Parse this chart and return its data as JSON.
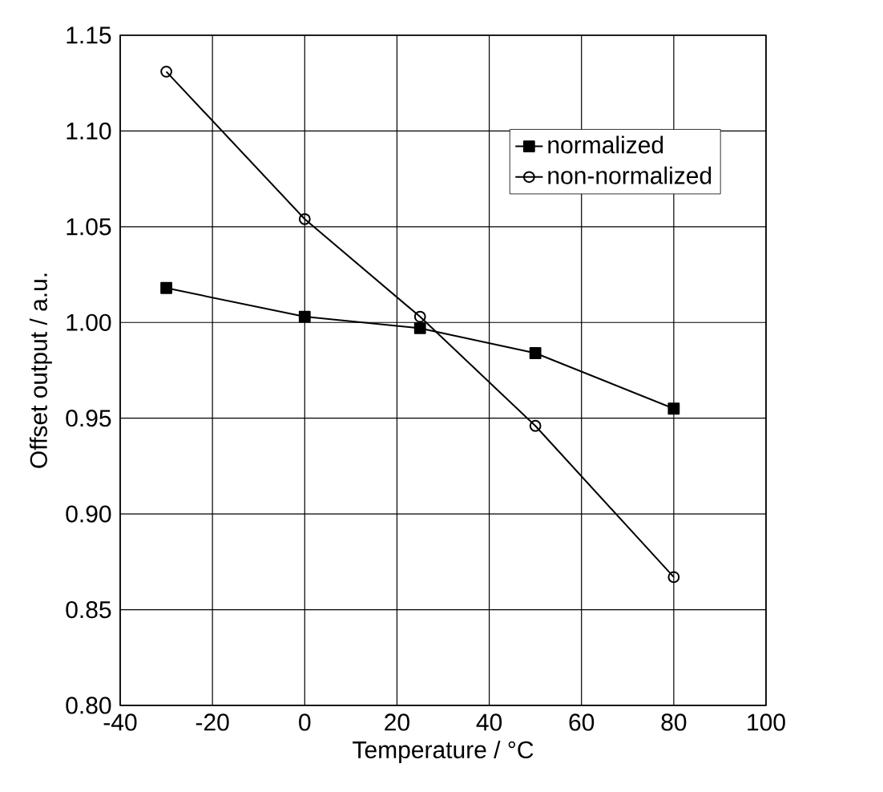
{
  "chart_data": {
    "type": "line",
    "xlabel": "Temperature / °C",
    "ylabel": "Offset output / a.u.",
    "x": [
      -30,
      0,
      25,
      50,
      80
    ],
    "series": [
      {
        "name": "normalized",
        "color": "#000000",
        "marker": "square",
        "values": [
          1.018,
          1.003,
          0.997,
          0.984,
          0.955
        ]
      },
      {
        "name": "non-normalized",
        "color": "#000000",
        "marker": "circle",
        "values": [
          1.131,
          1.054,
          1.003,
          0.946,
          0.867
        ]
      }
    ],
    "xlim": [
      -40,
      100
    ],
    "xticks": [
      -40,
      -20,
      0,
      20,
      40,
      60,
      80,
      100
    ],
    "ylim": [
      0.8,
      1.15
    ],
    "yticks": [
      {
        "value": 0.8,
        "label": "0.80"
      },
      {
        "value": 0.85,
        "label": "0.85"
      },
      {
        "value": 0.9,
        "label": "0.90"
      },
      {
        "value": 0.95,
        "label": "0.95"
      },
      {
        "value": 1.0,
        "label": "1.00"
      },
      {
        "value": 1.05,
        "label": "1.05"
      },
      {
        "value": 1.1,
        "label": "1.10"
      },
      {
        "value": 1.15,
        "label": "1.15"
      }
    ],
    "grid": true,
    "legend": "top right",
    "line_style": "solid"
  }
}
